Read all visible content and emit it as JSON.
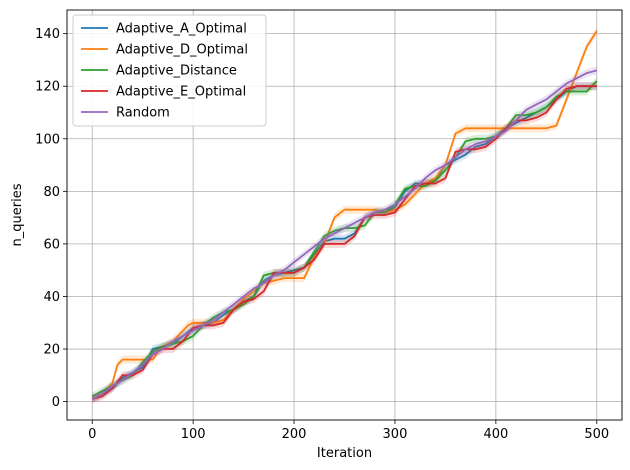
{
  "chart_data": {
    "type": "line",
    "title": "",
    "xlabel": "Iteration",
    "ylabel": "n_queries",
    "xlim": [
      -25,
      525
    ],
    "ylim": [
      -7,
      149
    ],
    "xticks": [
      0,
      100,
      200,
      300,
      400,
      500
    ],
    "yticks": [
      0,
      20,
      40,
      60,
      80,
      100,
      120,
      140
    ],
    "grid": true,
    "legend_position": "top-left",
    "series": [
      {
        "name": "Adaptive_A_Optimal",
        "color": "#1f77b4",
        "points": [
          [
            0,
            1
          ],
          [
            10,
            3
          ],
          [
            20,
            5
          ],
          [
            30,
            9
          ],
          [
            40,
            11
          ],
          [
            50,
            13
          ],
          [
            60,
            20
          ],
          [
            70,
            21
          ],
          [
            80,
            22
          ],
          [
            90,
            25
          ],
          [
            100,
            28
          ],
          [
            110,
            29
          ],
          [
            120,
            30
          ],
          [
            130,
            33
          ],
          [
            140,
            35
          ],
          [
            150,
            38
          ],
          [
            160,
            40
          ],
          [
            170,
            46
          ],
          [
            180,
            48
          ],
          [
            190,
            49
          ],
          [
            200,
            50
          ],
          [
            210,
            51
          ],
          [
            220,
            56
          ],
          [
            230,
            61
          ],
          [
            240,
            62
          ],
          [
            250,
            62
          ],
          [
            260,
            64
          ],
          [
            270,
            70
          ],
          [
            280,
            72
          ],
          [
            290,
            72
          ],
          [
            300,
            74
          ],
          [
            310,
            80
          ],
          [
            320,
            83
          ],
          [
            330,
            83
          ],
          [
            340,
            84
          ],
          [
            350,
            90
          ],
          [
            360,
            92
          ],
          [
            370,
            94
          ],
          [
            380,
            97
          ],
          [
            390,
            98
          ],
          [
            400,
            101
          ],
          [
            410,
            104
          ],
          [
            420,
            106
          ],
          [
            430,
            108
          ],
          [
            440,
            110
          ],
          [
            450,
            112
          ],
          [
            460,
            115
          ],
          [
            470,
            118
          ],
          [
            480,
            120
          ],
          [
            490,
            120
          ],
          [
            500,
            120
          ]
        ]
      },
      {
        "name": "Adaptive_D_Optimal",
        "color": "#ff7f0e",
        "points": [
          [
            0,
            1
          ],
          [
            10,
            3
          ],
          [
            20,
            7
          ],
          [
            25,
            14
          ],
          [
            30,
            16
          ],
          [
            40,
            16
          ],
          [
            50,
            16
          ],
          [
            60,
            16
          ],
          [
            65,
            19
          ],
          [
            70,
            21
          ],
          [
            80,
            23
          ],
          [
            90,
            27
          ],
          [
            95,
            29
          ],
          [
            100,
            30
          ],
          [
            110,
            30
          ],
          [
            120,
            30
          ],
          [
            130,
            31
          ],
          [
            140,
            35
          ],
          [
            150,
            39
          ],
          [
            160,
            42
          ],
          [
            170,
            45
          ],
          [
            180,
            46
          ],
          [
            190,
            47
          ],
          [
            200,
            47
          ],
          [
            210,
            47
          ],
          [
            220,
            55
          ],
          [
            230,
            60
          ],
          [
            240,
            70
          ],
          [
            250,
            73
          ],
          [
            260,
            73
          ],
          [
            270,
            73
          ],
          [
            280,
            73
          ],
          [
            290,
            72
          ],
          [
            300,
            73
          ],
          [
            310,
            75
          ],
          [
            320,
            79
          ],
          [
            330,
            83
          ],
          [
            340,
            85
          ],
          [
            350,
            90
          ],
          [
            360,
            102
          ],
          [
            370,
            104
          ],
          [
            380,
            104
          ],
          [
            390,
            104
          ],
          [
            400,
            104
          ],
          [
            410,
            104
          ],
          [
            420,
            104
          ],
          [
            430,
            104
          ],
          [
            440,
            104
          ],
          [
            450,
            104
          ],
          [
            460,
            105
          ],
          [
            470,
            115
          ],
          [
            480,
            125
          ],
          [
            490,
            135
          ],
          [
            500,
            141
          ]
        ]
      },
      {
        "name": "Adaptive_Distance",
        "color": "#2ca02c",
        "points": [
          [
            0,
            2
          ],
          [
            10,
            4
          ],
          [
            20,
            6
          ],
          [
            30,
            8
          ],
          [
            40,
            10
          ],
          [
            50,
            15
          ],
          [
            60,
            19
          ],
          [
            70,
            21
          ],
          [
            80,
            22
          ],
          [
            90,
            23
          ],
          [
            100,
            25
          ],
          [
            110,
            29
          ],
          [
            120,
            32
          ],
          [
            130,
            34
          ],
          [
            140,
            35
          ],
          [
            150,
            37
          ],
          [
            160,
            40
          ],
          [
            170,
            48
          ],
          [
            180,
            49
          ],
          [
            190,
            49
          ],
          [
            200,
            49
          ],
          [
            210,
            51
          ],
          [
            220,
            57
          ],
          [
            230,
            63
          ],
          [
            240,
            65
          ],
          [
            250,
            66
          ],
          [
            260,
            66
          ],
          [
            270,
            67
          ],
          [
            280,
            72
          ],
          [
            290,
            72
          ],
          [
            300,
            75
          ],
          [
            310,
            81
          ],
          [
            320,
            82
          ],
          [
            330,
            82
          ],
          [
            340,
            84
          ],
          [
            350,
            88
          ],
          [
            360,
            93
          ],
          [
            370,
            99
          ],
          [
            380,
            100
          ],
          [
            390,
            100
          ],
          [
            400,
            101
          ],
          [
            410,
            104
          ],
          [
            420,
            109
          ],
          [
            430,
            109
          ],
          [
            440,
            110
          ],
          [
            450,
            112
          ],
          [
            460,
            116
          ],
          [
            470,
            118
          ],
          [
            480,
            118
          ],
          [
            490,
            118
          ],
          [
            500,
            122
          ]
        ]
      },
      {
        "name": "Adaptive_E_Optimal",
        "color": "#d62728",
        "points": [
          [
            0,
            1
          ],
          [
            10,
            2
          ],
          [
            20,
            5
          ],
          [
            30,
            10
          ],
          [
            40,
            10
          ],
          [
            50,
            12
          ],
          [
            60,
            18
          ],
          [
            70,
            20
          ],
          [
            80,
            20
          ],
          [
            90,
            23
          ],
          [
            100,
            28
          ],
          [
            110,
            29
          ],
          [
            120,
            29
          ],
          [
            130,
            30
          ],
          [
            140,
            35
          ],
          [
            150,
            38
          ],
          [
            160,
            39
          ],
          [
            170,
            42
          ],
          [
            180,
            49
          ],
          [
            190,
            49
          ],
          [
            200,
            49
          ],
          [
            210,
            51
          ],
          [
            220,
            54
          ],
          [
            230,
            60
          ],
          [
            240,
            60
          ],
          [
            250,
            60
          ],
          [
            260,
            63
          ],
          [
            270,
            70
          ],
          [
            280,
            71
          ],
          [
            290,
            71
          ],
          [
            300,
            72
          ],
          [
            310,
            77
          ],
          [
            320,
            82
          ],
          [
            330,
            83
          ],
          [
            340,
            83
          ],
          [
            350,
            85
          ],
          [
            360,
            95
          ],
          [
            370,
            96
          ],
          [
            380,
            96
          ],
          [
            390,
            97
          ],
          [
            400,
            100
          ],
          [
            410,
            104
          ],
          [
            420,
            107
          ],
          [
            430,
            107
          ],
          [
            440,
            108
          ],
          [
            450,
            110
          ],
          [
            460,
            115
          ],
          [
            470,
            119
          ],
          [
            480,
            120
          ],
          [
            490,
            120
          ],
          [
            500,
            120
          ]
        ]
      },
      {
        "name": "Random",
        "color": "#9467bd",
        "points": [
          [
            0,
            1
          ],
          [
            10,
            3
          ],
          [
            20,
            6
          ],
          [
            30,
            8
          ],
          [
            40,
            11
          ],
          [
            50,
            14
          ],
          [
            60,
            18
          ],
          [
            70,
            20
          ],
          [
            80,
            23
          ],
          [
            90,
            25
          ],
          [
            100,
            27
          ],
          [
            110,
            29
          ],
          [
            120,
            31
          ],
          [
            130,
            34
          ],
          [
            140,
            37
          ],
          [
            150,
            40
          ],
          [
            160,
            43
          ],
          [
            170,
            45
          ],
          [
            180,
            48
          ],
          [
            190,
            50
          ],
          [
            200,
            53
          ],
          [
            210,
            56
          ],
          [
            220,
            59
          ],
          [
            230,
            62
          ],
          [
            240,
            64
          ],
          [
            250,
            66
          ],
          [
            260,
            68
          ],
          [
            270,
            70
          ],
          [
            280,
            72
          ],
          [
            290,
            73
          ],
          [
            300,
            75
          ],
          [
            310,
            78
          ],
          [
            320,
            81
          ],
          [
            330,
            85
          ],
          [
            340,
            88
          ],
          [
            350,
            90
          ],
          [
            360,
            93
          ],
          [
            370,
            96
          ],
          [
            380,
            98
          ],
          [
            390,
            99
          ],
          [
            400,
            101
          ],
          [
            410,
            103
          ],
          [
            420,
            107
          ],
          [
            430,
            111
          ],
          [
            440,
            113
          ],
          [
            450,
            115
          ],
          [
            460,
            118
          ],
          [
            470,
            121
          ],
          [
            480,
            123
          ],
          [
            490,
            125
          ],
          [
            500,
            126
          ]
        ]
      }
    ]
  }
}
